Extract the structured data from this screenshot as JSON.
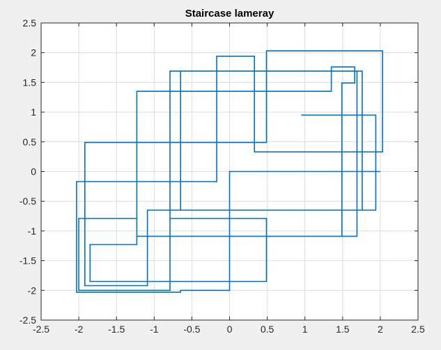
{
  "chart_data": {
    "type": "line",
    "title": "Staircase lameray",
    "xlabel": "",
    "ylabel": "",
    "xlim": [
      -2.5,
      2.5
    ],
    "ylim": [
      -2.5,
      2.5
    ],
    "xticks": [
      -2.5,
      -2,
      -1.5,
      -1,
      -0.5,
      0,
      0.5,
      1,
      1.5,
      2,
      2.5
    ],
    "xtick_labels": [
      "-2.5",
      "-2",
      "-1.5",
      "-1",
      "-0.5",
      "0",
      "0.5",
      "1",
      "1.5",
      "2",
      "2.5"
    ],
    "yticks": [
      -2.5,
      -2,
      -1.5,
      -1,
      -0.5,
      0,
      0.5,
      1,
      1.5,
      2,
      2.5
    ],
    "ytick_labels": [
      "-2.5",
      "-2",
      "-1.5",
      "-1",
      "-0.5",
      "0",
      "0.5",
      "1",
      "1.5",
      "2",
      "2.5"
    ],
    "grid": true,
    "series": [
      {
        "color": "#0072bd",
        "x": [
          2.0,
          0.0,
          0.0,
          -0.65,
          -0.65,
          -2.03,
          -2.03,
          -0.17,
          -0.17,
          0.33,
          0.33,
          2.03,
          2.03,
          0.49,
          0.49,
          -1.92,
          -1.92,
          -1.09,
          -1.09,
          1.49,
          1.49,
          1.66,
          1.66,
          1.35,
          1.35,
          -1.23,
          -1.23,
          -1.85,
          -1.85,
          0.49,
          0.49,
          -0.79,
          -0.79,
          -2.0,
          -2.0,
          -1.23,
          -1.23,
          -1.09,
          -1.09,
          1.76,
          1.76,
          -0.79,
          -0.79,
          1.69,
          1.69,
          -0.65,
          -0.65,
          1.94,
          1.94,
          0.95
        ],
        "y": [
          0.0,
          0.0,
          -2.0,
          -2.0,
          -2.03,
          -2.03,
          -0.17,
          -0.17,
          1.94,
          1.94,
          0.33,
          0.33,
          2.03,
          2.03,
          0.49,
          0.49,
          -1.92,
          -1.92,
          -1.09,
          -1.09,
          1.49,
          1.49,
          1.76,
          1.76,
          1.35,
          1.35,
          -1.23,
          -1.23,
          -1.85,
          -1.85,
          -0.79,
          -0.79,
          -2.0,
          -2.0,
          -0.79,
          -0.79,
          -1.09,
          -1.09,
          -0.65,
          -0.65,
          1.69,
          1.69,
          -1.09,
          -1.09,
          1.69,
          1.69,
          -0.65,
          -0.65,
          0.95,
          0.95
        ]
      }
    ]
  }
}
